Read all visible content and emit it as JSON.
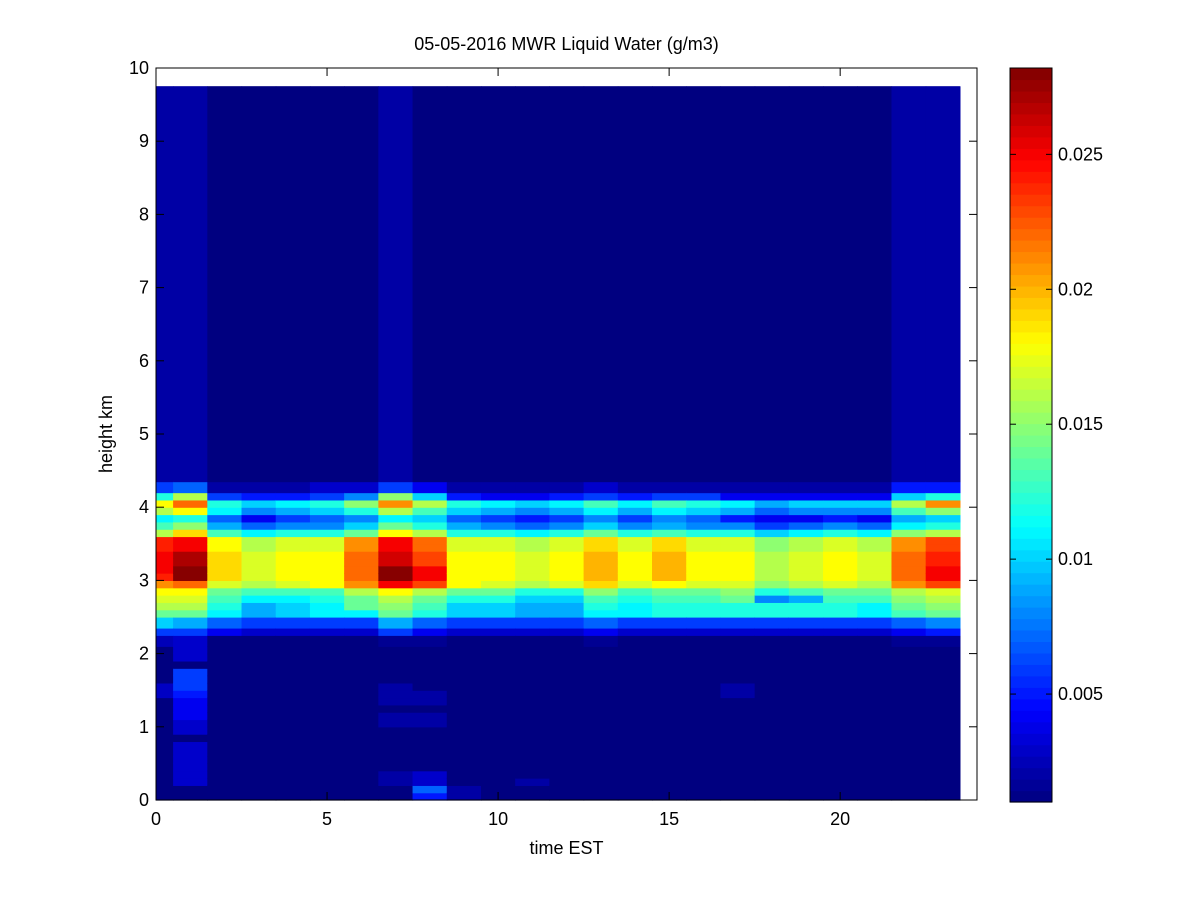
{
  "chart_data": {
    "type": "heatmap",
    "title": "05-05-2016 MWR Liquid Water (g/m3)",
    "xlabel": "time EST",
    "ylabel": "height km",
    "xlim": [
      0,
      24
    ],
    "ylim": [
      0,
      10
    ],
    "x_ticks": [
      0,
      5,
      10,
      15,
      20
    ],
    "y_ticks": [
      0,
      1,
      2,
      3,
      4,
      5,
      6,
      7,
      8,
      9,
      10
    ],
    "colormap": "jet",
    "colorbar": {
      "range": [
        0.001,
        0.0282
      ],
      "ticks": [
        0.005,
        0.01,
        0.015,
        0.02,
        0.025
      ],
      "tick_labels": [
        "0.005",
        "0.01",
        "0.015",
        "0.02",
        "0.025"
      ]
    },
    "cell_width_hours": 1,
    "time_start_hours": 0,
    "time_end_hours": 23.5,
    "time_centers_hours": [
      0,
      1,
      2,
      3,
      4,
      5,
      6,
      7,
      8,
      9,
      10,
      11,
      12,
      13,
      14,
      15,
      16,
      17,
      18,
      19,
      20,
      21,
      22,
      23
    ],
    "height_levels_km": [
      0,
      0.1,
      0.2,
      0.3,
      0.4,
      0.5,
      0.6,
      0.7,
      0.8,
      0.9,
      1.0,
      1.1,
      1.2,
      1.3,
      1.4,
      1.5,
      1.6,
      1.7,
      1.8,
      1.9,
      2.0,
      2.1,
      2.25,
      2.35,
      2.5,
      2.6,
      2.7,
      2.8,
      2.9,
      3.0,
      3.1,
      3.2,
      3.3,
      3.4,
      3.5,
      3.6,
      3.7,
      3.8,
      3.9,
      4.0,
      4.1,
      4.2,
      4.35,
      9.75
    ],
    "background_value": 0.001,
    "profiles": [
      [
        0.001,
        0.001,
        0.001,
        0.001,
        0.001,
        0.001,
        0.001,
        0.001,
        0.001,
        0.001,
        0.001,
        0.001,
        0.001,
        0.001,
        0.0028,
        0.0028,
        0.001,
        0.001,
        0.001,
        0.001,
        0.001,
        0.0025,
        0.006,
        0.01,
        0.014,
        0.016,
        0.017,
        0.018,
        0.021,
        0.024,
        0.025,
        0.025,
        0.025,
        0.024,
        0.024,
        0.016,
        0.013,
        0.011,
        0.016,
        0.018,
        0.012,
        0.006,
        0.002
      ],
      [
        0.001,
        0.001,
        0.003,
        0.003,
        0.003,
        0.003,
        0.003,
        0.003,
        0.001,
        0.003,
        0.003,
        0.004,
        0.004,
        0.004,
        0.005,
        0.006,
        0.006,
        0.006,
        0.001,
        0.003,
        0.003,
        0.003,
        0.006,
        0.009,
        0.014,
        0.016,
        0.017,
        0.018,
        0.022,
        0.028,
        0.028,
        0.027,
        0.027,
        0.025,
        0.025,
        0.019,
        0.015,
        0.012,
        0.018,
        0.022,
        0.016,
        0.007,
        0.002
      ],
      [
        0.001,
        0.001,
        0.001,
        0.001,
        0.001,
        0.001,
        0.001,
        0.001,
        0.001,
        0.001,
        0.001,
        0.001,
        0.001,
        0.001,
        0.001,
        0.001,
        0.001,
        0.001,
        0.001,
        0.001,
        0.001,
        0.001,
        0.004,
        0.007,
        0.011,
        0.012,
        0.013,
        0.014,
        0.017,
        0.019,
        0.019,
        0.019,
        0.019,
        0.018,
        0.018,
        0.013,
        0.009,
        0.007,
        0.011,
        0.012,
        0.006,
        0.002,
        0.001
      ],
      [
        0.001,
        0.001,
        0.001,
        0.001,
        0.001,
        0.001,
        0.001,
        0.001,
        0.001,
        0.001,
        0.001,
        0.001,
        0.001,
        0.001,
        0.001,
        0.001,
        0.001,
        0.001,
        0.001,
        0.001,
        0.001,
        0.001,
        0.003,
        0.006,
        0.009,
        0.009,
        0.011,
        0.013,
        0.016,
        0.017,
        0.017,
        0.017,
        0.017,
        0.016,
        0.016,
        0.011,
        0.007,
        0.004,
        0.008,
        0.01,
        0.005,
        0.002,
        0.001
      ],
      [
        0.001,
        0.001,
        0.001,
        0.001,
        0.001,
        0.001,
        0.001,
        0.001,
        0.001,
        0.001,
        0.001,
        0.001,
        0.001,
        0.001,
        0.001,
        0.001,
        0.001,
        0.001,
        0.001,
        0.001,
        0.001,
        0.001,
        0.003,
        0.006,
        0.01,
        0.01,
        0.011,
        0.013,
        0.017,
        0.018,
        0.018,
        0.018,
        0.018,
        0.017,
        0.017,
        0.012,
        0.008,
        0.006,
        0.009,
        0.011,
        0.005,
        0.002,
        0.001
      ],
      [
        0.001,
        0.001,
        0.001,
        0.001,
        0.001,
        0.001,
        0.001,
        0.001,
        0.001,
        0.001,
        0.001,
        0.001,
        0.001,
        0.001,
        0.001,
        0.001,
        0.001,
        0.001,
        0.001,
        0.001,
        0.001,
        0.001,
        0.003,
        0.006,
        0.011,
        0.011,
        0.012,
        0.013,
        0.018,
        0.018,
        0.018,
        0.018,
        0.018,
        0.017,
        0.017,
        0.012,
        0.008,
        0.007,
        0.01,
        0.012,
        0.006,
        0.003,
        0.001
      ],
      [
        0.001,
        0.001,
        0.001,
        0.001,
        0.001,
        0.001,
        0.001,
        0.001,
        0.001,
        0.001,
        0.001,
        0.001,
        0.001,
        0.001,
        0.001,
        0.001,
        0.001,
        0.001,
        0.001,
        0.001,
        0.001,
        0.001,
        0.003,
        0.006,
        0.011,
        0.014,
        0.014,
        0.016,
        0.021,
        0.022,
        0.022,
        0.022,
        0.022,
        0.021,
        0.021,
        0.014,
        0.01,
        0.008,
        0.012,
        0.015,
        0.008,
        0.003,
        0.001
      ],
      [
        0.001,
        0.001,
        0.002,
        0.002,
        0.001,
        0.001,
        0.001,
        0.001,
        0.001,
        0.001,
        0.002,
        0.002,
        0.001,
        0.002,
        0.002,
        0.002,
        0.001,
        0.001,
        0.001,
        0.001,
        0.001,
        0.0015,
        0.006,
        0.009,
        0.014,
        0.015,
        0.016,
        0.018,
        0.025,
        0.028,
        0.028,
        0.026,
        0.026,
        0.025,
        0.025,
        0.018,
        0.014,
        0.011,
        0.016,
        0.021,
        0.015,
        0.006,
        0.002
      ],
      [
        0.005,
        0.007,
        0.003,
        0.003,
        0.001,
        0.001,
        0.001,
        0.001,
        0.001,
        0.001,
        0.002,
        0.002,
        0.001,
        0.002,
        0.002,
        0.001,
        0.001,
        0.001,
        0.001,
        0.001,
        0.001,
        0.0015,
        0.004,
        0.007,
        0.012,
        0.013,
        0.014,
        0.016,
        0.023,
        0.025,
        0.025,
        0.023,
        0.023,
        0.022,
        0.022,
        0.016,
        0.012,
        0.01,
        0.013,
        0.016,
        0.01,
        0.004,
        0.001
      ],
      [
        0.002,
        0.002,
        0.001,
        0.001,
        0.001,
        0.001,
        0.001,
        0.001,
        0.001,
        0.001,
        0.001,
        0.001,
        0.001,
        0.001,
        0.001,
        0.001,
        0.001,
        0.001,
        0.001,
        0.001,
        0.001,
        0.001,
        0.003,
        0.006,
        0.01,
        0.01,
        0.012,
        0.014,
        0.018,
        0.018,
        0.018,
        0.018,
        0.018,
        0.017,
        0.017,
        0.012,
        0.009,
        0.007,
        0.01,
        0.012,
        0.005,
        0.002,
        0.001
      ],
      [
        0.001,
        0.001,
        0.001,
        0.001,
        0.001,
        0.001,
        0.001,
        0.001,
        0.001,
        0.001,
        0.001,
        0.001,
        0.001,
        0.001,
        0.001,
        0.001,
        0.001,
        0.001,
        0.001,
        0.001,
        0.001,
        0.001,
        0.003,
        0.006,
        0.01,
        0.01,
        0.012,
        0.014,
        0.017,
        0.018,
        0.018,
        0.018,
        0.018,
        0.017,
        0.017,
        0.012,
        0.008,
        0.006,
        0.009,
        0.011,
        0.004,
        0.002,
        0.001
      ],
      [
        0.001,
        0.001,
        0.002,
        0.001,
        0.001,
        0.001,
        0.001,
        0.001,
        0.001,
        0.001,
        0.001,
        0.001,
        0.001,
        0.001,
        0.001,
        0.001,
        0.001,
        0.001,
        0.001,
        0.001,
        0.001,
        0.001,
        0.003,
        0.006,
        0.009,
        0.009,
        0.01,
        0.012,
        0.016,
        0.017,
        0.017,
        0.017,
        0.017,
        0.016,
        0.016,
        0.011,
        0.007,
        0.005,
        0.008,
        0.01,
        0.004,
        0.002,
        0.001
      ],
      [
        0.001,
        0.001,
        0.001,
        0.001,
        0.001,
        0.001,
        0.001,
        0.001,
        0.001,
        0.001,
        0.001,
        0.001,
        0.001,
        0.001,
        0.001,
        0.001,
        0.001,
        0.001,
        0.001,
        0.001,
        0.001,
        0.001,
        0.003,
        0.006,
        0.009,
        0.009,
        0.01,
        0.012,
        0.017,
        0.018,
        0.018,
        0.018,
        0.018,
        0.017,
        0.017,
        0.012,
        0.008,
        0.006,
        0.009,
        0.011,
        0.005,
        0.002,
        0.001
      ],
      [
        0.001,
        0.001,
        0.001,
        0.001,
        0.001,
        0.001,
        0.001,
        0.001,
        0.001,
        0.001,
        0.001,
        0.001,
        0.001,
        0.001,
        0.001,
        0.001,
        0.001,
        0.001,
        0.001,
        0.001,
        0.001,
        0.0015,
        0.004,
        0.007,
        0.011,
        0.012,
        0.013,
        0.015,
        0.019,
        0.02,
        0.02,
        0.02,
        0.02,
        0.019,
        0.019,
        0.014,
        0.01,
        0.008,
        0.011,
        0.013,
        0.006,
        0.003,
        0.001
      ],
      [
        0.001,
        0.001,
        0.001,
        0.001,
        0.001,
        0.001,
        0.001,
        0.001,
        0.001,
        0.001,
        0.001,
        0.001,
        0.001,
        0.001,
        0.001,
        0.001,
        0.001,
        0.001,
        0.001,
        0.001,
        0.001,
        0.001,
        0.003,
        0.006,
        0.011,
        0.011,
        0.012,
        0.013,
        0.017,
        0.018,
        0.018,
        0.018,
        0.018,
        0.017,
        0.017,
        0.012,
        0.008,
        0.006,
        0.009,
        0.011,
        0.005,
        0.002,
        0.001
      ],
      [
        0.001,
        0.001,
        0.001,
        0.001,
        0.001,
        0.001,
        0.001,
        0.001,
        0.001,
        0.001,
        0.001,
        0.001,
        0.001,
        0.001,
        0.001,
        0.001,
        0.001,
        0.001,
        0.001,
        0.001,
        0.001,
        0.001,
        0.003,
        0.006,
        0.012,
        0.012,
        0.013,
        0.014,
        0.018,
        0.02,
        0.02,
        0.02,
        0.02,
        0.019,
        0.019,
        0.013,
        0.009,
        0.008,
        0.011,
        0.013,
        0.006,
        0.002,
        0.001
      ],
      [
        0.001,
        0.001,
        0.001,
        0.001,
        0.001,
        0.001,
        0.001,
        0.001,
        0.001,
        0.001,
        0.001,
        0.001,
        0.001,
        0.001,
        0.001,
        0.001,
        0.001,
        0.001,
        0.001,
        0.001,
        0.001,
        0.001,
        0.003,
        0.006,
        0.012,
        0.012,
        0.013,
        0.014,
        0.017,
        0.018,
        0.018,
        0.018,
        0.018,
        0.017,
        0.017,
        0.012,
        0.008,
        0.007,
        0.01,
        0.012,
        0.006,
        0.002,
        0.001
      ],
      [
        0.001,
        0.001,
        0.001,
        0.001,
        0.001,
        0.001,
        0.001,
        0.001,
        0.001,
        0.001,
        0.001,
        0.001,
        0.001,
        0.001,
        0.002,
        0.002,
        0.001,
        0.001,
        0.001,
        0.001,
        0.001,
        0.001,
        0.003,
        0.006,
        0.012,
        0.012,
        0.014,
        0.015,
        0.017,
        0.018,
        0.018,
        0.018,
        0.018,
        0.017,
        0.017,
        0.012,
        0.008,
        0.005,
        0.009,
        0.011,
        0.004,
        0.002,
        0.001
      ],
      [
        0.001,
        0.001,
        0.001,
        0.001,
        0.001,
        0.001,
        0.001,
        0.001,
        0.001,
        0.001,
        0.001,
        0.001,
        0.001,
        0.001,
        0.001,
        0.001,
        0.001,
        0.001,
        0.001,
        0.001,
        0.001,
        0.001,
        0.003,
        0.006,
        0.012,
        0.012,
        0.008,
        0.012,
        0.015,
        0.016,
        0.016,
        0.016,
        0.016,
        0.015,
        0.015,
        0.01,
        0.006,
        0.004,
        0.007,
        0.009,
        0.004,
        0.002,
        0.001
      ],
      [
        0.001,
        0.001,
        0.001,
        0.001,
        0.001,
        0.001,
        0.001,
        0.001,
        0.001,
        0.001,
        0.001,
        0.001,
        0.001,
        0.001,
        0.001,
        0.001,
        0.001,
        0.001,
        0.001,
        0.001,
        0.001,
        0.001,
        0.003,
        0.006,
        0.012,
        0.012,
        0.009,
        0.013,
        0.016,
        0.017,
        0.017,
        0.017,
        0.017,
        0.016,
        0.016,
        0.011,
        0.007,
        0.004,
        0.008,
        0.01,
        0.004,
        0.002,
        0.001
      ],
      [
        0.001,
        0.001,
        0.001,
        0.001,
        0.001,
        0.001,
        0.001,
        0.001,
        0.001,
        0.001,
        0.001,
        0.001,
        0.001,
        0.001,
        0.001,
        0.001,
        0.001,
        0.001,
        0.001,
        0.001,
        0.001,
        0.001,
        0.003,
        0.006,
        0.012,
        0.012,
        0.013,
        0.014,
        0.017,
        0.018,
        0.018,
        0.018,
        0.018,
        0.017,
        0.017,
        0.012,
        0.008,
        0.005,
        0.008,
        0.01,
        0.004,
        0.002,
        0.001
      ],
      [
        0.001,
        0.001,
        0.001,
        0.001,
        0.001,
        0.001,
        0.001,
        0.001,
        0.001,
        0.001,
        0.001,
        0.001,
        0.001,
        0.001,
        0.001,
        0.001,
        0.001,
        0.001,
        0.001,
        0.001,
        0.001,
        0.001,
        0.003,
        0.006,
        0.011,
        0.011,
        0.013,
        0.014,
        0.016,
        0.017,
        0.017,
        0.017,
        0.017,
        0.016,
        0.016,
        0.011,
        0.007,
        0.004,
        0.008,
        0.01,
        0.004,
        0.002,
        0.001
      ],
      [
        0.001,
        0.001,
        0.001,
        0.001,
        0.001,
        0.001,
        0.001,
        0.001,
        0.001,
        0.001,
        0.001,
        0.001,
        0.001,
        0.001,
        0.001,
        0.001,
        0.001,
        0.001,
        0.001,
        0.001,
        0.001,
        0.0015,
        0.004,
        0.007,
        0.013,
        0.014,
        0.015,
        0.016,
        0.021,
        0.022,
        0.022,
        0.022,
        0.022,
        0.021,
        0.021,
        0.015,
        0.011,
        0.009,
        0.013,
        0.016,
        0.01,
        0.005,
        0.002
      ],
      [
        0.001,
        0.001,
        0.001,
        0.001,
        0.001,
        0.001,
        0.001,
        0.001,
        0.001,
        0.001,
        0.001,
        0.001,
        0.001,
        0.001,
        0.001,
        0.001,
        0.001,
        0.001,
        0.001,
        0.001,
        0.001,
        0.0015,
        0.005,
        0.008,
        0.014,
        0.015,
        0.016,
        0.017,
        0.023,
        0.025,
        0.025,
        0.024,
        0.024,
        0.023,
        0.023,
        0.016,
        0.012,
        0.01,
        0.015,
        0.021,
        0.012,
        0.005,
        0.002
      ]
    ]
  }
}
